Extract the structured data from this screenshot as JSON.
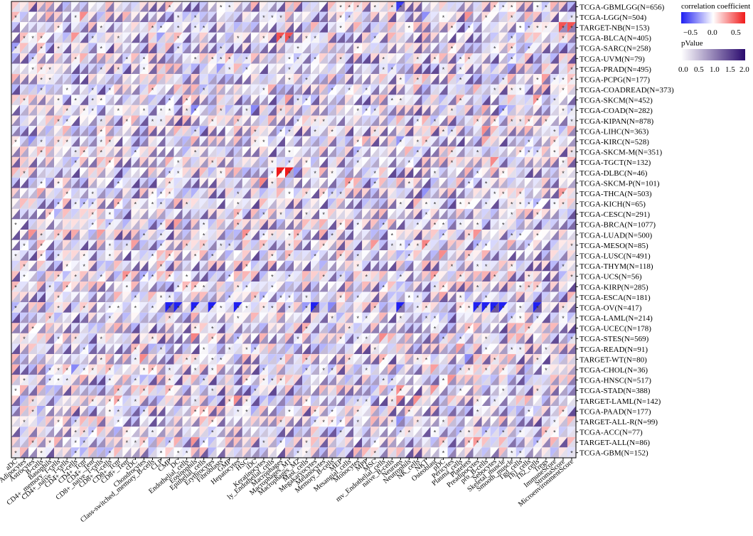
{
  "chart_data": {
    "type": "heatmap",
    "title": "",
    "xlabel": "",
    "ylabel": "",
    "rows": [
      "TCGA-GBMLGG(N=656)",
      "TCGA-LGG(N=504)",
      "TARGET-NB(N=153)",
      "TCGA-BLCA(N=405)",
      "TCGA-SARC(N=258)",
      "TCGA-UVM(N=79)",
      "TCGA-PRAD(N=495)",
      "TCGA-PCPG(N=177)",
      "TCGA-COADREAD(N=373)",
      "TCGA-SKCM(N=452)",
      "TCGA-COAD(N=282)",
      "TCGA-KIPAN(N=878)",
      "TCGA-LIHC(N=363)",
      "TCGA-KIRC(N=528)",
      "TCGA-SKCM-M(N=351)",
      "TCGA-TGCT(N=132)",
      "TCGA-DLBC(N=46)",
      "TCGA-SKCM-P(N=101)",
      "TCGA-THCA(N=503)",
      "TCGA-KICH(N=65)",
      "TCGA-CESC(N=291)",
      "TCGA-BRCA(N=1077)",
      "TCGA-LUAD(N=500)",
      "TCGA-MESO(N=85)",
      "TCGA-LUSC(N=491)",
      "TCGA-THYM(N=118)",
      "TCGA-UCS(N=56)",
      "TCGA-KIRP(N=285)",
      "TCGA-ESCA(N=181)",
      "TCGA-OV(N=417)",
      "TCGA-LAML(N=214)",
      "TCGA-UCEC(N=178)",
      "TCGA-STES(N=569)",
      "TCGA-READ(N=91)",
      "TARGET-WT(N=80)",
      "TCGA-CHOL(N=36)",
      "TCGA-HNSC(N=517)",
      "TCGA-STAD(N=388)",
      "TARGET-LAML(N=142)",
      "TCGA-PAAD(N=177)",
      "TARGET-ALL-R(N=99)",
      "TCGA-ACC(N=77)",
      "TARGET-ALL(N=86)",
      "TCGA-GBM(N=152)"
    ],
    "columns": [
      "aDC",
      "Adipocytes",
      "Astrocytes",
      "B-cells",
      "Basophils",
      "CD4+_memory_T-cells",
      "CD4+_naive_T-cells",
      "CD4+_T-cells",
      "CD4+_Tcm",
      "CD4+_Tem",
      "CD8+_naive_T-cells",
      "CD8+_T-cells",
      "CD8+_Tcm",
      "CD8+_Tem",
      "cDC",
      "Chondrocytes",
      "Class-switched_memory_B-cells",
      "CLP",
      "CMP",
      "DC",
      "Endothelial_cells",
      "Eosinophils",
      "Epithelial_cells",
      "Erythrocytes",
      "Fibroblasts",
      "GMP",
      "Hepatocytes",
      "HSC",
      "iDC",
      "Keratinocytes",
      "ly_Endothelial_cells",
      "Macrophages",
      "Macrophages_M1",
      "Macrophages_M2",
      "Mast_cells",
      "Megakaryocytes",
      "Melanocytes",
      "Memory_B-cells",
      "MEP",
      "Mesangial_cells",
      "Monocytes",
      "MPP",
      "MSC",
      "mv_Endothelial_cells",
      "naive_B-cells",
      "Neurons",
      "Neutrophils",
      "NK_cells",
      "NKT",
      "Osteoblast",
      "pDC",
      "Pericytes",
      "Plasma_cells",
      "Platelets",
      "Preadipocytes",
      "pro_B-cells",
      "Sebocytes",
      "Skeletal_muscle",
      "Smooth_muscle",
      "Tgd_cells",
      "Th1_cells",
      "Th2_cells",
      "Tregs",
      "ImmuneScore",
      "StromaScore",
      "MicroenvironmentScore"
    ],
    "legend": {
      "correlation": {
        "title": "correlation coefficient",
        "ticks": [
          "−0.5",
          "0.0",
          "0.5"
        ],
        "range": [
          -0.8,
          0.8
        ],
        "low_color": "#1f1ff2",
        "mid_color": "#ffffff",
        "high_color": "#f01a1a"
      },
      "pvalue": {
        "title": "pValue",
        "ticks": [
          "0.0",
          "0.5",
          "1.0",
          "1.5",
          "2.0"
        ],
        "range": [
          0,
          2
        ],
        "low_color": "#ffffff",
        "high_color": "#2a0a6e"
      }
    },
    "significance_marker": "*",
    "cell_encoding": "upper-left triangle = correlation coefficient; lower-right triangle = pValue",
    "notable_cells": [
      {
        "row": "TCGA-DLBC(N=46)",
        "column": "Macrophages",
        "correlation": 0.9
      },
      {
        "row": "TCGA-DLBC(N=46)",
        "column": "Macrophages_M1",
        "correlation": 0.9
      },
      {
        "row": "TCGA-OV(N=417)",
        "column": "CMP",
        "correlation": -0.8
      },
      {
        "row": "TCGA-OV(N=417)",
        "column": "DC",
        "correlation": -0.8
      },
      {
        "row": "TCGA-OV(N=417)",
        "column": "Eosinophils",
        "correlation": -0.8
      },
      {
        "row": "TCGA-OV(N=417)",
        "column": "Erythrocytes",
        "correlation": -0.8
      },
      {
        "row": "TCGA-OV(N=417)",
        "column": "Hepatocytes",
        "correlation": -0.8
      },
      {
        "row": "TCGA-OV(N=417)",
        "column": "Megakaryocytes",
        "correlation": -0.8
      },
      {
        "row": "TCGA-OV(N=417)",
        "column": "Neurons",
        "correlation": -0.8
      },
      {
        "row": "TCGA-OV(N=417)",
        "column": "Preadipocytes",
        "correlation": -0.8
      },
      {
        "row": "TCGA-OV(N=417)",
        "column": "pro_B-cells",
        "correlation": -0.8
      },
      {
        "row": "TCGA-OV(N=417)",
        "column": "Sebocytes",
        "correlation": -0.8
      },
      {
        "row": "TCGA-OV(N=417)",
        "column": "Skeletal_muscle",
        "correlation": -0.8
      },
      {
        "row": "TCGA-OV(N=417)",
        "column": "Th2_cells",
        "correlation": -0.8
      },
      {
        "row": "TCGA-GBMLGG(N=656)",
        "column": "Neurons",
        "correlation": -0.7
      },
      {
        "row": "TCGA-BLCA(N=405)",
        "column": "Macrophages",
        "correlation": 0.6
      },
      {
        "row": "TCGA-BLCA(N=405)",
        "column": "Macrophages_M1",
        "correlation": 0.6
      },
      {
        "row": "TARGET-NB(N=153)",
        "column": "StromaScore",
        "correlation": 0.6
      },
      {
        "row": "TARGET-NB(N=153)",
        "column": "MicroenvironmentScore",
        "correlation": 0.6
      }
    ]
  }
}
